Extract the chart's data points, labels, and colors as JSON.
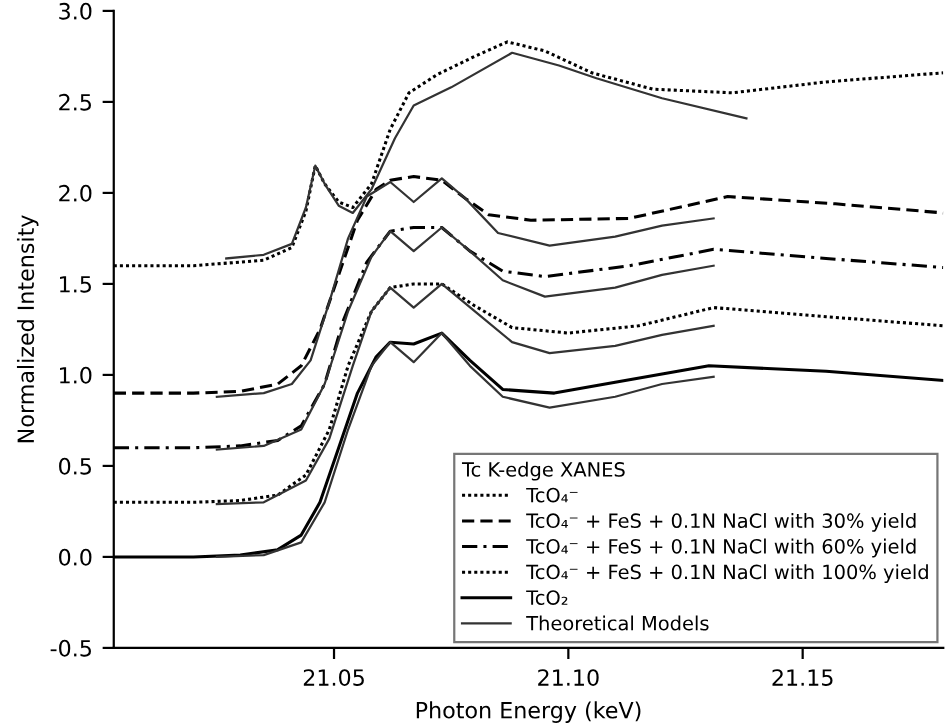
{
  "chart_data": {
    "type": "line",
    "xlabel": "Photon Energy (keV)",
    "ylabel": "Normalized Intensity",
    "legend_title": "Tc K-edge XANES",
    "xlim": [
      21.003,
      21.18
    ],
    "ylim": [
      -0.5,
      3.0
    ],
    "xticks": [
      {
        "value": 21.05,
        "label": "21.05"
      },
      {
        "value": 21.1,
        "label": "21.10"
      },
      {
        "value": 21.15,
        "label": "21.15"
      }
    ],
    "yticks": [
      {
        "value": -0.5,
        "label": "-0.5"
      },
      {
        "value": 0,
        "label": "0.0"
      },
      {
        "value": 0.5,
        "label": "0.5"
      },
      {
        "value": 1.0,
        "label": "1.0"
      },
      {
        "value": 1.5,
        "label": "1.5"
      },
      {
        "value": 2.0,
        "label": "2.0"
      },
      {
        "value": 2.5,
        "label": "2.5"
      },
      {
        "value": 3.0,
        "label": "3.0"
      }
    ],
    "grid": false,
    "legend": "bottom right",
    "marker": "none",
    "series": [
      {
        "name": "TcO₄⁻",
        "color": "#000000",
        "line_style": "dotted",
        "x": [
          21.003,
          21.02,
          21.035,
          21.041,
          21.044,
          21.046,
          21.048,
          21.051,
          21.054,
          21.058,
          21.062,
          21.066,
          21.072,
          21.08,
          21.087,
          21.095,
          21.105,
          21.118,
          21.135,
          21.155,
          21.18
        ],
        "values": [
          1.6,
          1.6,
          1.63,
          1.7,
          1.9,
          2.15,
          2.05,
          1.95,
          1.92,
          2.05,
          2.35,
          2.55,
          2.65,
          2.75,
          2.83,
          2.78,
          2.66,
          2.57,
          2.55,
          2.61,
          2.66
        ]
      },
      {
        "name": "TcO₄⁻ + FeS + 0.1N NaCl with 30% yield",
        "color": "#000000",
        "line_style": "dashed",
        "x": [
          21.003,
          21.02,
          21.03,
          21.038,
          21.043,
          21.047,
          21.051,
          21.055,
          21.059,
          21.062,
          21.067,
          21.073,
          21.078,
          21.083,
          21.092,
          21.113,
          21.134,
          21.157,
          21.18
        ],
        "values": [
          0.9,
          0.9,
          0.91,
          0.95,
          1.05,
          1.25,
          1.55,
          1.85,
          2.02,
          2.07,
          2.09,
          2.07,
          1.97,
          1.88,
          1.85,
          1.86,
          1.98,
          1.94,
          1.89
        ]
      },
      {
        "name": "TcO₄⁻ + FeS + 0.1N NaCl with 60% yield",
        "color": "#000000",
        "line_style": "dashdot",
        "x": [
          21.003,
          21.02,
          21.03,
          21.038,
          21.043,
          21.048,
          21.052,
          21.057,
          21.062,
          21.067,
          21.073,
          21.079,
          21.086,
          21.095,
          21.113,
          21.131,
          21.155,
          21.18
        ],
        "values": [
          0.6,
          0.6,
          0.61,
          0.64,
          0.72,
          0.95,
          1.3,
          1.62,
          1.79,
          1.81,
          1.81,
          1.68,
          1.57,
          1.54,
          1.6,
          1.69,
          1.64,
          1.59
        ]
      },
      {
        "name": "TcO₄⁻ + FeS + 0.1N NaCl with 100% yield",
        "color": "#000000",
        "line_style": "dotted",
        "x": [
          21.003,
          21.02,
          21.03,
          21.038,
          21.044,
          21.049,
          21.053,
          21.058,
          21.062,
          21.067,
          21.073,
          21.08,
          21.088,
          21.1,
          21.115,
          21.131,
          21.155,
          21.18
        ],
        "values": [
          0.3,
          0.3,
          0.31,
          0.34,
          0.45,
          0.7,
          1.05,
          1.35,
          1.48,
          1.5,
          1.5,
          1.38,
          1.26,
          1.23,
          1.27,
          1.37,
          1.32,
          1.27
        ]
      },
      {
        "name": "TcO₂",
        "color": "#000000",
        "line_style": "solid",
        "x": [
          21.003,
          21.02,
          21.03,
          21.038,
          21.043,
          21.047,
          21.051,
          21.055,
          21.059,
          21.062,
          21.067,
          21.073,
          21.079,
          21.086,
          21.097,
          21.11,
          21.13,
          21.155,
          21.18
        ],
        "values": [
          0.0,
          0.0,
          0.01,
          0.04,
          0.12,
          0.3,
          0.6,
          0.9,
          1.1,
          1.18,
          1.17,
          1.23,
          1.08,
          0.92,
          0.9,
          0.96,
          1.05,
          1.02,
          0.97
        ]
      },
      {
        "name": "Theoretical Models",
        "color": "#333333",
        "line_style": "solid",
        "x": [
          21.027,
          21.035,
          21.041,
          21.044,
          21.046,
          21.048,
          21.051,
          21.054,
          21.058,
          21.063,
          21.067,
          21.075,
          21.088,
          21.098,
          21.106,
          21.12,
          21.138
        ],
        "values": [
          1.64,
          1.66,
          1.72,
          1.92,
          2.15,
          2.05,
          1.93,
          1.89,
          2.02,
          2.3,
          2.48,
          2.58,
          2.77,
          2.7,
          2.63,
          2.52,
          2.41
        ]
      },
      {
        "color": "#333333",
        "line_style": "solid",
        "x": [
          21.025,
          21.035,
          21.041,
          21.045,
          21.049,
          21.053,
          21.057,
          21.062,
          21.067,
          21.073,
          21.078,
          21.085,
          21.096,
          21.11,
          21.12,
          21.131
        ],
        "values": [
          0.88,
          0.9,
          0.95,
          1.08,
          1.4,
          1.75,
          1.98,
          2.06,
          1.95,
          2.08,
          1.97,
          1.78,
          1.71,
          1.76,
          1.82,
          1.86
        ]
      },
      {
        "color": "#333333",
        "line_style": "solid",
        "x": [
          21.025,
          21.035,
          21.043,
          21.048,
          21.053,
          21.058,
          21.062,
          21.067,
          21.073,
          21.079,
          21.086,
          21.095,
          21.11,
          21.12,
          21.131
        ],
        "values": [
          0.59,
          0.61,
          0.7,
          0.95,
          1.35,
          1.65,
          1.79,
          1.68,
          1.81,
          1.68,
          1.52,
          1.43,
          1.48,
          1.55,
          1.6
        ]
      },
      {
        "color": "#333333",
        "line_style": "solid",
        "x": [
          21.025,
          21.035,
          21.044,
          21.049,
          21.054,
          21.058,
          21.062,
          21.067,
          21.073,
          21.08,
          21.088,
          21.096,
          21.11,
          21.12,
          21.131
        ],
        "values": [
          0.29,
          0.3,
          0.42,
          0.65,
          1.05,
          1.35,
          1.48,
          1.37,
          1.5,
          1.35,
          1.18,
          1.12,
          1.16,
          1.22,
          1.27
        ]
      },
      {
        "color": "#333333",
        "line_style": "solid",
        "x": [
          21.025,
          21.035,
          21.043,
          21.048,
          21.053,
          21.058,
          21.062,
          21.067,
          21.073,
          21.079,
          21.086,
          21.096,
          21.11,
          21.12,
          21.131
        ],
        "values": [
          0.0,
          0.01,
          0.08,
          0.3,
          0.7,
          1.05,
          1.18,
          1.07,
          1.23,
          1.05,
          0.88,
          0.82,
          0.88,
          0.95,
          0.99
        ]
      }
    ]
  }
}
